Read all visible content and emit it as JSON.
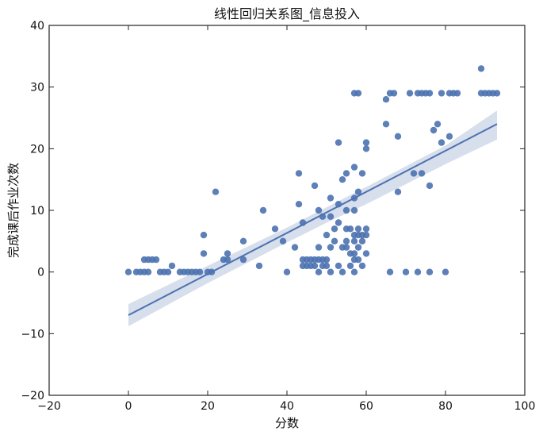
{
  "chart_data": {
    "type": "scatter",
    "title": "线性回归关系图_信息投入",
    "xlabel": "分数",
    "ylabel": "完成课后作业次数",
    "xlim": [
      -20,
      100
    ],
    "ylim": [
      -20,
      40
    ],
    "xticks": [
      "−20",
      "0",
      "20",
      "40",
      "60",
      "80",
      "100"
    ],
    "yticks": [
      "−20",
      "−10",
      "0",
      "10",
      "20",
      "30",
      "40"
    ],
    "grid": false,
    "colors": {
      "points": "#4c72b0",
      "regression_line": "#4c72b0",
      "confidence_band": "#c9d3e6"
    },
    "regression": {
      "x": [
        0,
        93
      ],
      "y": [
        -7,
        24
      ]
    },
    "confidence_band": {
      "x": [
        0,
        20,
        40,
        50,
        60,
        80,
        93
      ],
      "lower": [
        -8.8,
        -1.8,
        4.8,
        8.0,
        11.0,
        17.5,
        21.5
      ],
      "upper": [
        -5.2,
        1.0,
        7.2,
        10.5,
        13.8,
        20.5,
        26.2
      ]
    },
    "points": [
      [
        0,
        0
      ],
      [
        2,
        0
      ],
      [
        3,
        0
      ],
      [
        4,
        0
      ],
      [
        5,
        0
      ],
      [
        4,
        2
      ],
      [
        5,
        2
      ],
      [
        6,
        2
      ],
      [
        7,
        2
      ],
      [
        8,
        0
      ],
      [
        9,
        0
      ],
      [
        10,
        0
      ],
      [
        11,
        1
      ],
      [
        13,
        0
      ],
      [
        14,
        0
      ],
      [
        15,
        0
      ],
      [
        16,
        0
      ],
      [
        17,
        0
      ],
      [
        18,
        0
      ],
      [
        19,
        3
      ],
      [
        19,
        6
      ],
      [
        20,
        0
      ],
      [
        21,
        0
      ],
      [
        22,
        13
      ],
      [
        24,
        2
      ],
      [
        25,
        2
      ],
      [
        25,
        3
      ],
      [
        29,
        2
      ],
      [
        29,
        5
      ],
      [
        33,
        1
      ],
      [
        34,
        10
      ],
      [
        37,
        7
      ],
      [
        39,
        5
      ],
      [
        40,
        0
      ],
      [
        42,
        4
      ],
      [
        43,
        16
      ],
      [
        43,
        11
      ],
      [
        44,
        8
      ],
      [
        44,
        1
      ],
      [
        44,
        2
      ],
      [
        45,
        2
      ],
      [
        45,
        1
      ],
      [
        46,
        2
      ],
      [
        46,
        1
      ],
      [
        47,
        2
      ],
      [
        47,
        1
      ],
      [
        47,
        14
      ],
      [
        48,
        10
      ],
      [
        48,
        4
      ],
      [
        48,
        0
      ],
      [
        48,
        2
      ],
      [
        49,
        1
      ],
      [
        49,
        2
      ],
      [
        49,
        9
      ],
      [
        50,
        6
      ],
      [
        50,
        2
      ],
      [
        50,
        1
      ],
      [
        51,
        9
      ],
      [
        51,
        12
      ],
      [
        51,
        0
      ],
      [
        51,
        4
      ],
      [
        52,
        5
      ],
      [
        52,
        7
      ],
      [
        53,
        11
      ],
      [
        53,
        8
      ],
      [
        53,
        21
      ],
      [
        53,
        1
      ],
      [
        54,
        4
      ],
      [
        54,
        15
      ],
      [
        54,
        0
      ],
      [
        55,
        16
      ],
      [
        55,
        10
      ],
      [
        55,
        4
      ],
      [
        55,
        7
      ],
      [
        55,
        5
      ],
      [
        56,
        7
      ],
      [
        56,
        3
      ],
      [
        56,
        1
      ],
      [
        57,
        12
      ],
      [
        57,
        10
      ],
      [
        57,
        17
      ],
      [
        57,
        5
      ],
      [
        57,
        2
      ],
      [
        57,
        0
      ],
      [
        57,
        3
      ],
      [
        57,
        6
      ],
      [
        58,
        13
      ],
      [
        58,
        29
      ],
      [
        58,
        4
      ],
      [
        58,
        7
      ],
      [
        58,
        6
      ],
      [
        58,
        2
      ],
      [
        59,
        5
      ],
      [
        59,
        16
      ],
      [
        59,
        1
      ],
      [
        59,
        6
      ],
      [
        60,
        7
      ],
      [
        60,
        6
      ],
      [
        60,
        20
      ],
      [
        60,
        21
      ],
      [
        60,
        3
      ],
      [
        57,
        29
      ],
      [
        65,
        24
      ],
      [
        65,
        28
      ],
      [
        66,
        29
      ],
      [
        67,
        29
      ],
      [
        66,
        0
      ],
      [
        68,
        13
      ],
      [
        68,
        22
      ],
      [
        70,
        0
      ],
      [
        71,
        29
      ],
      [
        72,
        16
      ],
      [
        73,
        29
      ],
      [
        73,
        0
      ],
      [
        74,
        16
      ],
      [
        74,
        29
      ],
      [
        75,
        29
      ],
      [
        76,
        29
      ],
      [
        76,
        14
      ],
      [
        76,
        0
      ],
      [
        77,
        23
      ],
      [
        78,
        24
      ],
      [
        79,
        21
      ],
      [
        79,
        29
      ],
      [
        80,
        0
      ],
      [
        81,
        29
      ],
      [
        81,
        22
      ],
      [
        82,
        29
      ],
      [
        83,
        29
      ],
      [
        89,
        33
      ],
      [
        89,
        29
      ],
      [
        90,
        29
      ],
      [
        91,
        29
      ],
      [
        92,
        29
      ],
      [
        93,
        29
      ]
    ]
  }
}
